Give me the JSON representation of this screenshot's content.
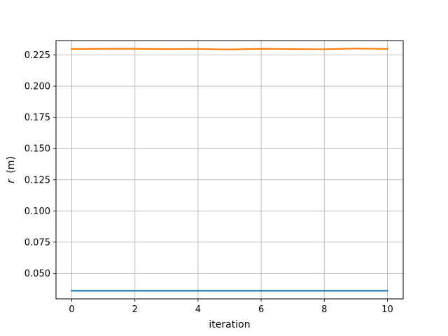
{
  "chart_data": {
    "type": "line",
    "xlabel": "iteration",
    "ylabel_prefix": "r",
    "ylabel_unit": "(m)",
    "xlim": [
      -0.5,
      10.5
    ],
    "ylim": [
      0.0295,
      0.2365
    ],
    "xticks": [
      0,
      2,
      4,
      6,
      8,
      10
    ],
    "xtick_labels": [
      "0",
      "2",
      "4",
      "6",
      "8",
      "10"
    ],
    "yticks": [
      0.05,
      0.075,
      0.1,
      0.125,
      0.15,
      0.175,
      0.2,
      0.225
    ],
    "ytick_labels": [
      "0.050",
      "0.075",
      "0.100",
      "0.125",
      "0.150",
      "0.175",
      "0.200",
      "0.225"
    ],
    "grid": true,
    "x": [
      0,
      1,
      2,
      3,
      4,
      5,
      6,
      7,
      8,
      9,
      10
    ],
    "series": [
      {
        "color": "#1f77b4",
        "values": [
          0.036,
          0.036,
          0.036,
          0.036,
          0.036,
          0.036,
          0.036,
          0.036,
          0.036,
          0.036,
          0.036
        ]
      },
      {
        "color": "#ff7f0e",
        "values": [
          0.2298,
          0.2299,
          0.2299,
          0.2297,
          0.2298,
          0.2294,
          0.2299,
          0.2297,
          0.2296,
          0.2301,
          0.2298
        ]
      }
    ],
    "colors": {
      "grid": "#b0b0b0",
      "spine": "#000000"
    }
  }
}
